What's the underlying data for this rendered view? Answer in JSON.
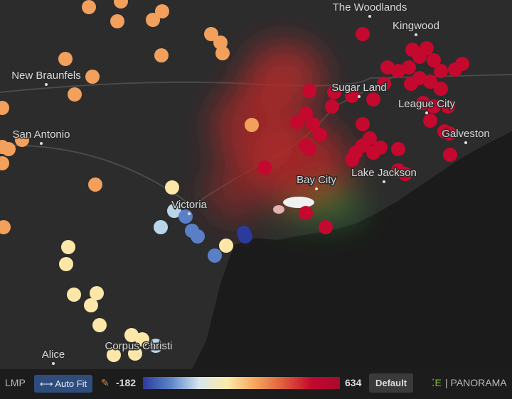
{
  "map": {
    "labels": [
      {
        "text": "The Woodlands"
      },
      {
        "text": "Kingwood"
      },
      {
        "text": "New Braunfels"
      },
      {
        "text": "Sugar Land"
      },
      {
        "text": "League City"
      },
      {
        "text": "Galveston"
      },
      {
        "text": "San Antonio"
      },
      {
        "text": "Bay City"
      },
      {
        "text": "Lake Jackson"
      },
      {
        "text": "Victoria"
      },
      {
        "text": "Alice"
      },
      {
        "text": "Corpus Christi"
      }
    ]
  },
  "toolbar": {
    "metric": "LMP",
    "auto_fit": "Auto Fit",
    "min": -182,
    "max": 634,
    "default": "Default",
    "brand": "PANORAMA"
  }
}
